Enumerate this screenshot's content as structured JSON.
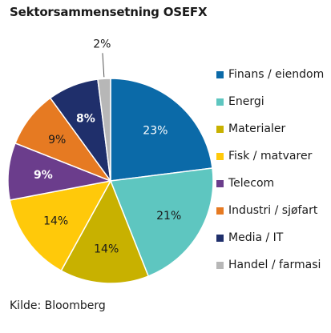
{
  "chart_data": {
    "type": "pie",
    "title": "Sektorsammensetning OSEFX",
    "source": "Kilde: Bloomberg",
    "slices": [
      {
        "name": "Finans / eiendom",
        "value": 23,
        "label": "23%",
        "color": "#0b6aa8",
        "label_color": "#ffffff",
        "bold": false
      },
      {
        "name": "Energi",
        "value": 21,
        "label": "21%",
        "color": "#5ec6c0",
        "label_color": "#1a1a1a",
        "bold": false
      },
      {
        "name": "Materialer",
        "value": 14,
        "label": "14%",
        "color": "#c8b100",
        "label_color": "#1a1a1a",
        "bold": false
      },
      {
        "name": "Fisk / matvarer",
        "value": 14,
        "label": "14%",
        "color": "#ffc90a",
        "label_color": "#1a1a1a",
        "bold": false
      },
      {
        "name": "Telecom",
        "value": 9,
        "label": "9%",
        "color": "#6b3d8c",
        "label_color": "#ffffff",
        "bold": true
      },
      {
        "name": "Industri / sjøfart",
        "value": 9,
        "label": "9%",
        "color": "#e67a22",
        "label_color": "#1a1a1a",
        "bold": false
      },
      {
        "name": "Media / IT",
        "value": 8,
        "label": "8%",
        "color": "#1f2f6b",
        "label_color": "#ffffff",
        "bold": true
      },
      {
        "name": "Handel / farmasi",
        "value": 2,
        "label": "2%",
        "color": "#b7b7b7",
        "label_color": "#1a1a1a",
        "bold": false
      }
    ]
  }
}
